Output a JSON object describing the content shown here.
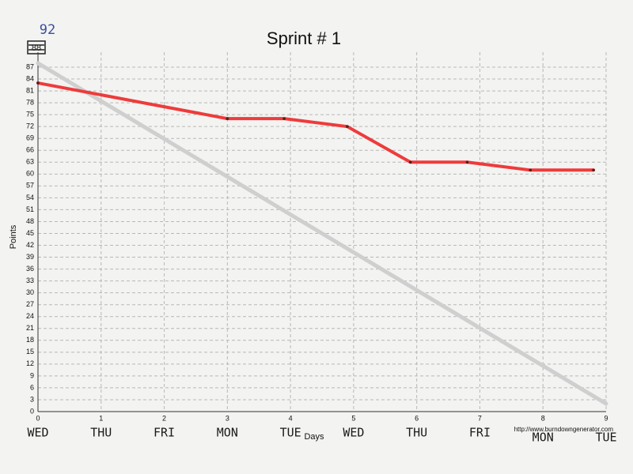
{
  "chart_data": {
    "type": "line",
    "title": "Sprint # 1",
    "x_label": "Days",
    "y_label": "Points",
    "credit": "http://www.burndowngenerator.com",
    "crossed_out_top": "88",
    "handwritten_top": "92",
    "xlim": [
      0,
      9
    ],
    "ylim": [
      0,
      88
    ],
    "xticks": [
      0,
      1,
      2,
      3,
      4,
      5,
      6,
      7,
      8,
      9
    ],
    "day_labels": [
      "WED",
      "THU",
      "FRI",
      "MON",
      "TUE",
      "WED",
      "THU",
      "FRI",
      "MON",
      "TUE"
    ],
    "yticks": [
      0,
      3,
      6,
      9,
      12,
      15,
      18,
      21,
      24,
      27,
      30,
      33,
      36,
      39,
      42,
      45,
      48,
      51,
      54,
      57,
      60,
      63,
      66,
      69,
      72,
      75,
      78,
      81,
      84,
      87
    ],
    "grid": true,
    "series": [
      {
        "color": "#cfcfcf",
        "x": [
          0,
          9
        ],
        "values": [
          88,
          2
        ]
      },
      {
        "color": "#ee3b3b",
        "x": [
          0,
          3,
          3.9,
          4.9,
          5.9,
          6.8,
          7.8,
          8.8
        ],
        "values": [
          83,
          74,
          74,
          72,
          63,
          63,
          61,
          61
        ]
      }
    ]
  }
}
